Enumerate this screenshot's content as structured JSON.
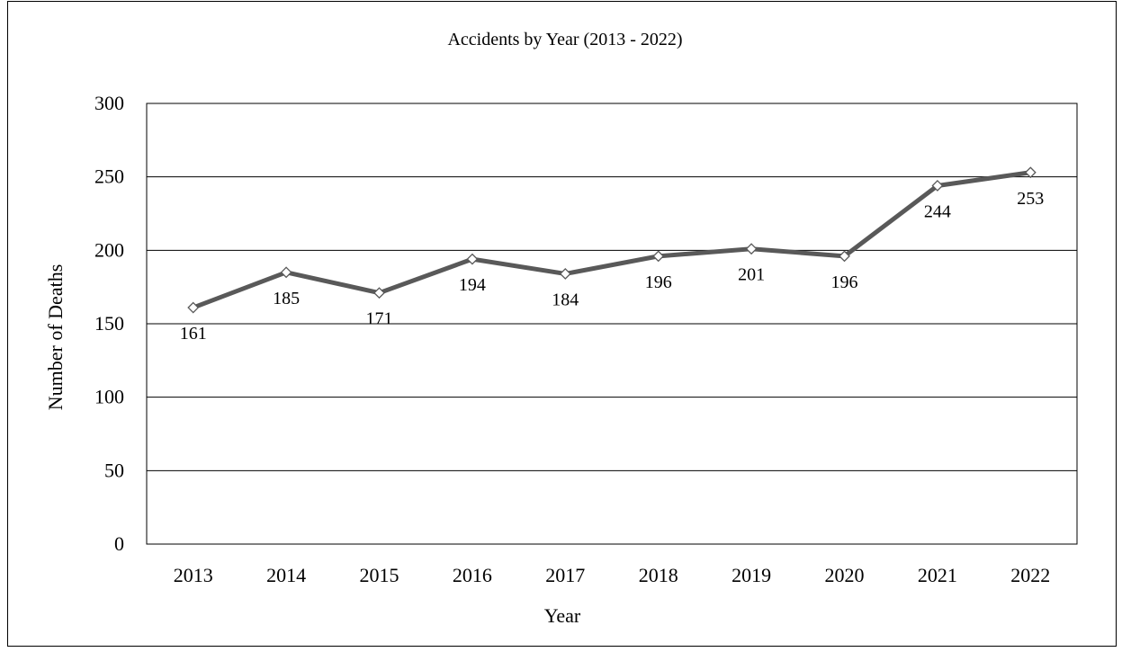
{
  "chart_data": {
    "type": "line",
    "title": "Accidents by Year  (2013 - 2022)",
    "xlabel": "Year",
    "ylabel": "Number of Deaths",
    "categories": [
      "2013",
      "2014",
      "2015",
      "2016",
      "2017",
      "2018",
      "2019",
      "2020",
      "2021",
      "2022"
    ],
    "series": [
      {
        "values": [
          161,
          185,
          171,
          194,
          184,
          196,
          201,
          196,
          244,
          253
        ]
      }
    ],
    "ylim": [
      0,
      300
    ],
    "yticks": [
      0,
      50,
      100,
      150,
      200,
      250,
      300
    ],
    "grid": true,
    "legend": "none",
    "line_color": "#595959",
    "marker": "diamond",
    "data_labels": "below"
  }
}
